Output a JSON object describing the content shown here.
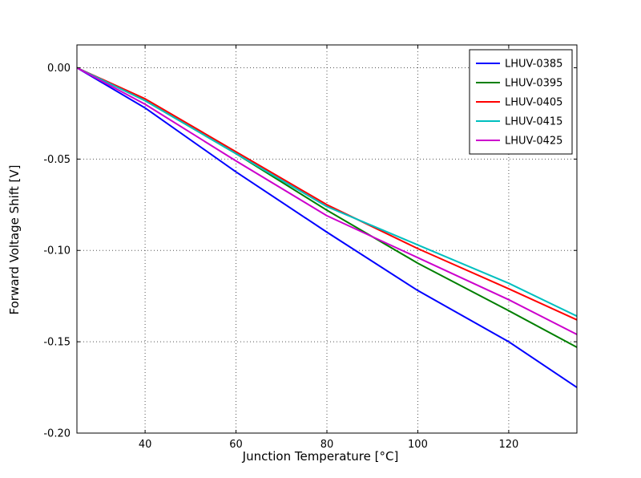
{
  "figure": {
    "background": "#ffffff",
    "frame_color": "#000000",
    "grid_color": "#555555"
  },
  "chart_data": {
    "type": "line",
    "title": "",
    "xlabel": "Junction Temperature [°C]",
    "ylabel": "Forward Voltage Shift [V]",
    "xlim": [
      25,
      135
    ],
    "ylim": [
      -0.2,
      0.0125
    ],
    "xticks": [
      40,
      60,
      80,
      100,
      120
    ],
    "yticks": [
      0.0,
      -0.05,
      -0.1,
      -0.15,
      -0.2
    ],
    "grid": true,
    "legend_position": "upper right",
    "x": [
      25,
      40,
      60,
      80,
      100,
      120,
      135
    ],
    "series": [
      {
        "name": "LHUV-0385",
        "color": "#0000ff",
        "values": [
          0.0,
          -0.022,
          -0.057,
          -0.09,
          -0.122,
          -0.15,
          -0.175
        ]
      },
      {
        "name": "LHUV-0395",
        "color": "#007f00",
        "values": [
          0.0,
          -0.018,
          -0.047,
          -0.078,
          -0.107,
          -0.133,
          -0.153
        ]
      },
      {
        "name": "LHUV-0405",
        "color": "#ff0000",
        "values": [
          0.0,
          -0.017,
          -0.046,
          -0.075,
          -0.099,
          -0.121,
          -0.138
        ]
      },
      {
        "name": "LHUV-0415",
        "color": "#00bfbf",
        "values": [
          0.0,
          -0.018,
          -0.047,
          -0.076,
          -0.097,
          -0.118,
          -0.136
        ]
      },
      {
        "name": "LHUV-0425",
        "color": "#cc00cc",
        "values": [
          0.0,
          -0.02,
          -0.051,
          -0.081,
          -0.104,
          -0.127,
          -0.146
        ]
      }
    ]
  }
}
